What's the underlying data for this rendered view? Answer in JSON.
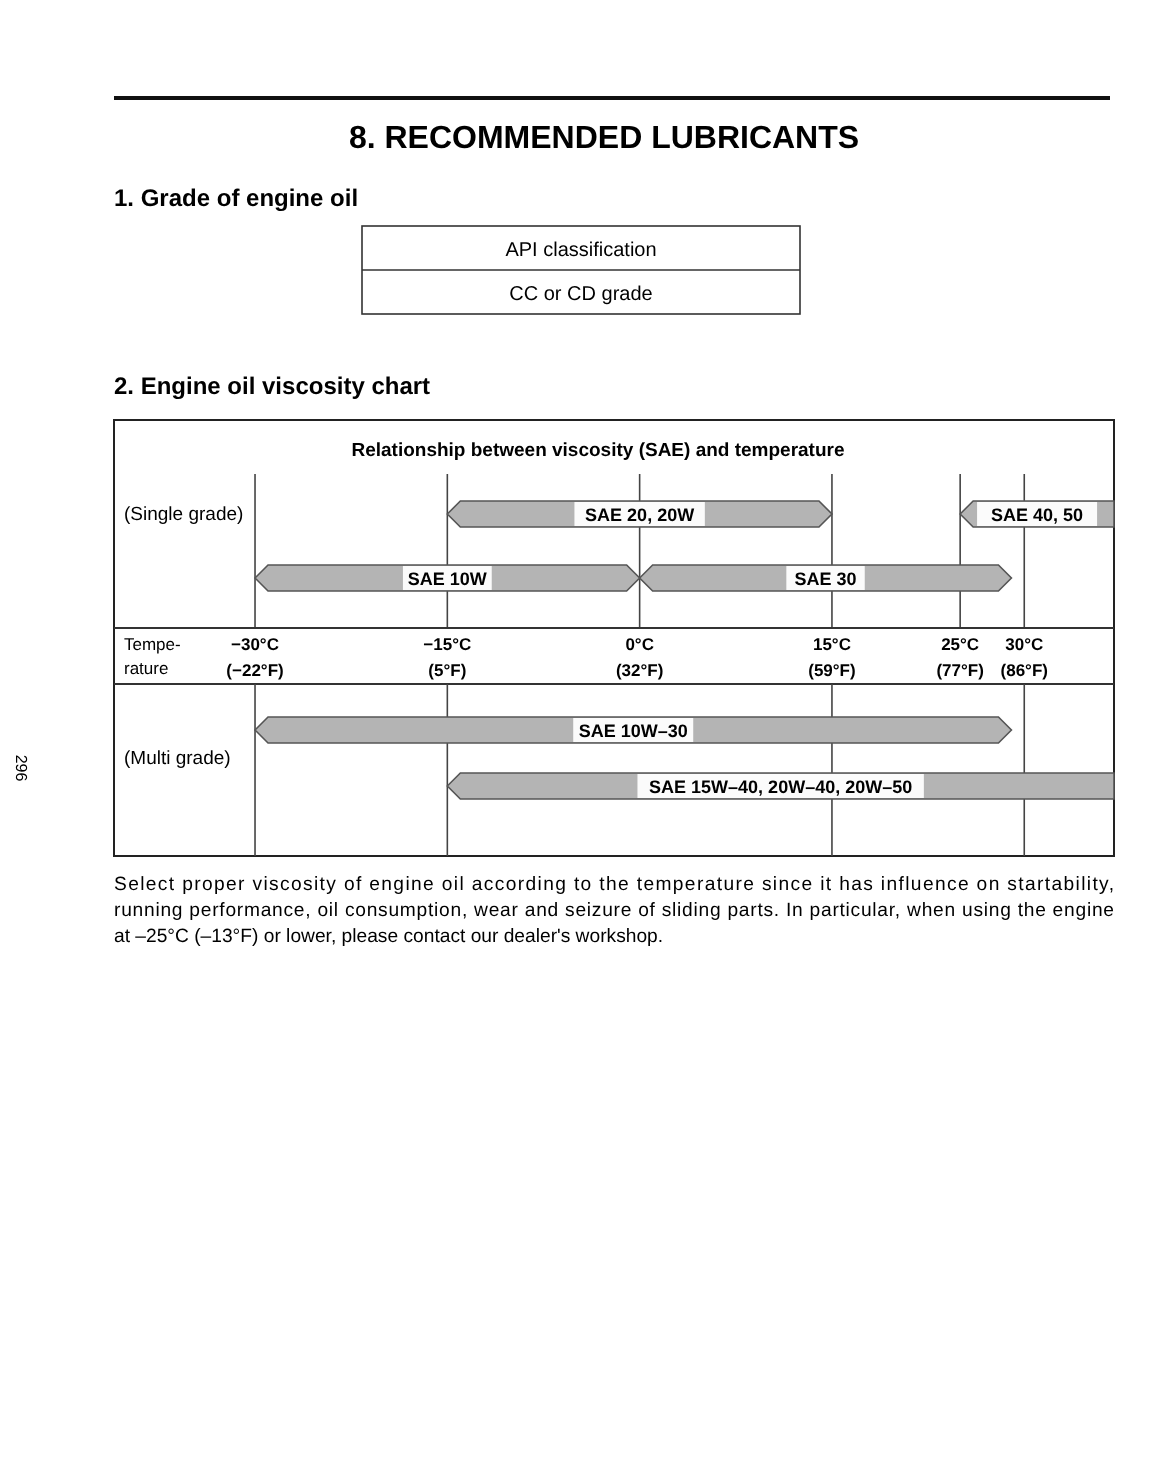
{
  "chart_data": [
    {
      "type": "other",
      "title": "8. RECOMMENDED LUBRICANTS",
      "subtitle": "1. Grade of engine oil",
      "annotations": [
        "API classification",
        "CC or CD grade"
      ]
    },
    {
      "type": "bar",
      "orientation": "horizontal",
      "title": "Relationship between viscosity (SAE) and temperature",
      "annotations": [
        "2. Engine oil viscosity chart"
      ],
      "xlabel": "Tempe-\nrature",
      "ylabel": "(Single grade)",
      "categories": [
        null,
        null
      ],
      "series": [
        {
          "name": "SAE 20, 20W",
          "color": "#b4b4b4",
          "values": [
            30,
            null
          ],
          "base": [
            -15,
            null
          ]
        },
        {
          "name": "SAE 40, 50",
          "color": "#b4b4b4",
          "values": [
            12,
            null
          ],
          "base": [
            25,
            null
          ]
        },
        {
          "name": "SAE 10W",
          "color": "#b4b4b4",
          "values": [
            null,
            30
          ],
          "base": [
            null,
            -30
          ]
        },
        {
          "name": "SAE 30",
          "color": "#b4b4b4",
          "values": [
            null,
            29
          ],
          "base": [
            null,
            0
          ]
        }
      ],
      "xlim": [
        -41,
        37
      ],
      "xticks": [
        {
          "value": -30,
          "label": "−30°C"
        },
        {
          "value": -15,
          "label": "−15°C"
        },
        {
          "value": 0,
          "label": "0°C"
        },
        {
          "value": 15,
          "label": "15°C"
        },
        {
          "value": 25,
          "label": "25°C"
        },
        {
          "value": 30,
          "label": "30°C"
        }
      ],
      "x2lim": [
        -41.8,
        98.6
      ],
      "x2ticks": [
        {
          "value": -22,
          "label": "(−22°F)"
        },
        {
          "value": 5,
          "label": "(5°F)"
        },
        {
          "value": 32,
          "label": "(32°F)"
        },
        {
          "value": 59,
          "label": "(59°F)"
        },
        {
          "value": 77,
          "label": "(77°F)"
        },
        {
          "value": 86,
          "label": "(86°F)"
        }
      ],
      "grid": "x",
      "tick_labels": "x"
    },
    {
      "type": "bar",
      "orientation": "horizontal",
      "ylabel": "(Multi grade)",
      "categories": [
        null,
        null
      ],
      "series": [
        {
          "name": "SAE 10W–30",
          "color": "#b4b4b4",
          "values": [
            59,
            null
          ],
          "base": [
            -30,
            null
          ]
        },
        {
          "name": "SAE 15W–40, 20W–40, 20W–50",
          "color": "#b4b4b4",
          "values": [
            null,
            52
          ],
          "base": [
            null,
            -15
          ]
        }
      ],
      "xlim": [
        -41,
        37
      ],
      "xticks": [
        -30,
        -15,
        15,
        30
      ],
      "grid": "x",
      "tick_labels": false,
      "annotations": [
        "Select proper viscosity of engine oil according to the temperature since it has influence on startability,\nrunning performance, oil consumption, wear and seizure of sliding parts. In particular, when using the engine\nat –25°C (–13°F) or lower, please contact our dealer's workshop.",
        "296"
      ]
    }
  ]
}
